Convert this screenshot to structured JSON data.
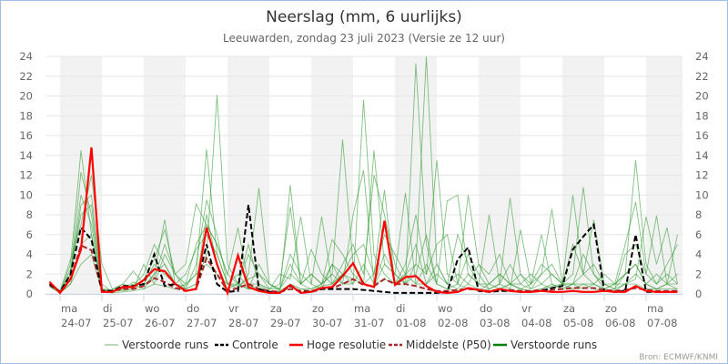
{
  "chart_data": {
    "type": "line",
    "title": "Neerslag (mm, 6 uurlijks)",
    "subtitle": "Leeuwarden, zondag 23 juli 2023 (Versie ze 12 uur)",
    "source": "Bron: ECMWF/KNMI",
    "ylim": [
      0,
      24
    ],
    "yticks": [
      0,
      2,
      4,
      6,
      8,
      10,
      12,
      14,
      16,
      18,
      20,
      22,
      24
    ],
    "grid": true,
    "legend_placement": "bottom",
    "x_ticks": [
      {
        "day": "ma",
        "date": "24-07"
      },
      {
        "day": "di",
        "date": "25-07"
      },
      {
        "day": "wo",
        "date": "26-07"
      },
      {
        "day": "do",
        "date": "27-07"
      },
      {
        "day": "vr",
        "date": "28-07"
      },
      {
        "day": "za",
        "date": "29-07"
      },
      {
        "day": "zo",
        "date": "30-07"
      },
      {
        "day": "ma",
        "date": "31-07"
      },
      {
        "day": "di",
        "date": "01-08"
      },
      {
        "day": "wo",
        "date": "02-08"
      },
      {
        "day": "do",
        "date": "03-08"
      },
      {
        "day": "vr",
        "date": "04-08"
      },
      {
        "day": "za",
        "date": "05-08"
      },
      {
        "day": "zo",
        "date": "06-08"
      },
      {
        "day": "ma",
        "date": "07-08"
      }
    ],
    "legend": [
      {
        "label": "Verstoorde runs",
        "color": "#b9dcb4",
        "style": "solid"
      },
      {
        "label": "Controle",
        "color": "#000000",
        "style": "dashed"
      },
      {
        "label": "Hoge resolutie",
        "color": "#ff0000",
        "style": "solid"
      },
      {
        "label": "Middelste (P50)",
        "color": "#a52a2a",
        "style": "dashed"
      },
      {
        "label": "Verstoorde runs",
        "color": "#008000",
        "style": "solid"
      }
    ],
    "series": {
      "hoge_resolutie": [
        1.2,
        0.1,
        1.5,
        4.5,
        14.8,
        0.2,
        0.2,
        0.7,
        0.7,
        1.4,
        2.5,
        2.3,
        1.0,
        0.3,
        0.5,
        6.7,
        3.0,
        0.1,
        3.9,
        0.7,
        0.3,
        0.1,
        0.1,
        0.9,
        0.1,
        0.2,
        0.6,
        0.7,
        1.8,
        3.1,
        1.0,
        0.7,
        7.4,
        0.9,
        1.7,
        1.8,
        0.8,
        0.2,
        0.1,
        0.2,
        0.6,
        0.4,
        0.2,
        0.5,
        0.3,
        0.2,
        0.2,
        0.3,
        0.2,
        0.2,
        0.3,
        0.2,
        0.2,
        0.3,
        0.2,
        0.2,
        0.8,
        0.3,
        0.2,
        0.2,
        0.2
      ],
      "controle": [
        1.0,
        0.2,
        2.0,
        6.7,
        5.5,
        0.3,
        0.3,
        0.8,
        0.8,
        1.0,
        4.0,
        0.8,
        1.0,
        0.3,
        0.5,
        5.0,
        1.0,
        0.2,
        0.3,
        9.0,
        0.5,
        0.2,
        0.1,
        0.8,
        0.2,
        0.2,
        0.5,
        0.5,
        0.5,
        0.5,
        0.4,
        0.3,
        0.2,
        0.1,
        0.1,
        0.1,
        0.1,
        0.1,
        0.2,
        3.5,
        4.7,
        0.3,
        0.2,
        0.3,
        0.3,
        0.2,
        0.2,
        0.3,
        0.6,
        0.8,
        4.5,
        5.8,
        7.0,
        0.3,
        0.2,
        0.3,
        6.0,
        0.2,
        0.2,
        0.2,
        0.2
      ],
      "middelste_p50": [
        0.9,
        0.2,
        1.5,
        4.9,
        4.4,
        0.3,
        0.3,
        0.5,
        0.5,
        0.8,
        1.6,
        1.2,
        0.6,
        0.3,
        0.5,
        3.6,
        2.0,
        0.3,
        0.6,
        1.0,
        0.5,
        0.3,
        0.2,
        0.5,
        0.3,
        0.3,
        0.5,
        0.6,
        1.0,
        1.5,
        0.9,
        0.8,
        1.5,
        1.0,
        1.0,
        0.8,
        0.5,
        0.3,
        0.3,
        0.4,
        0.5,
        0.4,
        0.3,
        0.4,
        0.4,
        0.3,
        0.3,
        0.4,
        0.4,
        0.5,
        0.6,
        0.6,
        0.6,
        0.4,
        0.3,
        0.4,
        0.6,
        0.4,
        0.3,
        0.3,
        0.3
      ],
      "verstoorde_runs": [
        [
          1.3,
          0.2,
          3,
          14.5,
          6,
          0.3,
          0.2,
          0.5,
          1.2,
          0.8,
          2,
          7.5,
          1,
          0.5,
          1,
          4,
          20.1,
          3,
          1,
          0.5,
          0.8,
          0.3,
          0.2,
          1,
          0.5,
          0.3,
          0.8,
          1,
          2,
          1.5,
          1,
          0.8,
          3,
          2,
          1,
          23.3,
          5,
          1,
          0.5,
          0.3,
          1,
          0.5,
          0.3,
          0.5,
          1,
          0.5,
          0.3,
          0.5,
          1,
          0.5,
          1,
          1,
          0.5,
          0.3,
          0.5,
          1,
          2,
          1,
          0.5,
          0.5,
          0.5
        ],
        [
          1.0,
          0.1,
          2,
          12.3,
          8,
          0.5,
          0.3,
          0.8,
          0.5,
          1,
          3,
          2,
          1,
          0.8,
          2,
          14.6,
          4,
          1,
          0.5,
          2,
          10.7,
          1,
          0.3,
          11,
          1,
          0.5,
          1,
          2,
          15.6,
          3,
          1,
          2,
          10.5,
          1,
          2,
          3,
          24,
          3,
          1,
          0.5,
          2,
          1,
          0.5,
          1,
          9.7,
          2,
          0.5,
          1,
          2,
          1,
          2,
          10.8,
          2,
          0.5,
          1,
          2,
          3,
          1,
          0.5,
          1,
          1
        ],
        [
          0.8,
          0.2,
          1.5,
          9,
          10,
          1,
          0.2,
          0.5,
          0.8,
          2,
          5,
          3,
          1,
          0.5,
          3,
          9.5,
          6,
          1,
          0.8,
          1.5,
          2,
          0.5,
          0.5,
          4,
          2,
          1,
          7.8,
          1,
          2,
          1,
          19.6,
          4,
          2,
          1,
          3,
          8,
          2,
          13.5,
          2,
          1,
          10,
          3,
          1,
          2,
          1,
          0.5,
          1,
          6,
          1,
          0.5,
          1,
          2,
          7.5,
          1,
          0.5,
          2,
          13.5,
          3,
          1,
          2,
          1
        ],
        [
          1.1,
          0.3,
          3.5,
          7,
          12,
          3,
          0.5,
          1,
          2.3,
          1,
          1.5,
          5,
          2,
          1,
          5,
          7,
          5,
          2,
          6.7,
          1,
          1,
          0.5,
          1,
          8.8,
          1,
          2,
          1,
          5.5,
          4,
          2,
          1,
          14.5,
          3,
          2,
          1,
          2,
          6,
          1,
          9.4,
          10,
          2,
          1,
          8,
          1,
          0.5,
          6.5,
          1,
          2,
          8.6,
          1,
          10,
          2,
          1,
          0.5,
          1,
          5,
          9.3,
          2,
          7.9,
          1,
          6
        ],
        [
          0.9,
          0.1,
          1,
          5,
          6,
          0.4,
          0.3,
          0.3,
          0.5,
          3,
          1,
          4,
          2,
          0.5,
          1,
          8,
          3,
          0.5,
          1,
          5,
          1,
          0.5,
          2,
          1.5,
          7.8,
          1,
          0.5,
          3,
          1,
          8,
          12.5,
          1,
          4,
          2,
          10.2,
          1,
          1,
          2,
          1,
          6,
          3,
          1,
          1,
          2,
          1,
          1,
          2,
          1,
          0.5,
          1,
          1,
          0.5,
          1,
          2,
          1,
          1,
          1.5,
          7.8,
          3,
          6.7,
          1
        ],
        [
          1.2,
          0.3,
          2,
          10,
          7,
          0.3,
          0.2,
          0.5,
          1,
          0.5,
          2,
          3,
          1,
          2,
          4.5,
          6,
          4,
          1,
          2,
          0.5,
          3,
          1,
          0.5,
          2,
          1,
          4.5,
          2,
          1,
          3,
          5,
          2,
          12,
          8,
          3,
          1,
          3,
          2,
          5,
          6,
          1,
          4,
          2,
          0.5,
          1,
          3,
          1,
          0.5,
          2,
          3,
          1,
          1,
          4,
          2,
          1,
          0.5,
          4,
          5,
          2,
          1,
          3,
          5
        ],
        [
          0.7,
          0.1,
          1,
          3,
          4,
          0.2,
          0.1,
          0.2,
          0.3,
          0.5,
          1,
          0.8,
          0.5,
          1,
          2,
          3,
          2,
          1,
          1,
          0.5,
          0.5,
          0.2,
          0.3,
          1,
          0.5,
          0.5,
          1,
          2,
          1,
          1,
          3,
          1,
          1.5,
          1,
          2,
          1,
          3,
          1,
          0.5,
          1,
          0.5,
          0.3,
          1,
          0.5,
          1,
          0.5,
          0.3,
          0.5,
          0.8,
          1,
          0.5,
          1,
          1,
          0.5,
          0.3,
          1,
          1,
          0.5,
          0.5,
          1,
          0.5
        ],
        [
          1.0,
          0.2,
          2.5,
          8,
          9,
          0.5,
          0.4,
          1,
          0.6,
          1.5,
          3.5,
          6.5,
          2,
          3,
          9.1,
          7,
          5,
          2,
          1,
          4,
          2,
          1,
          0.5,
          3,
          1,
          2,
          1,
          3,
          2,
          4,
          5,
          2,
          6,
          4,
          2,
          5,
          1,
          3,
          1,
          2,
          1,
          3,
          2,
          4,
          1,
          2,
          1,
          3,
          2,
          1,
          5,
          2,
          3,
          1,
          1,
          2,
          3,
          1,
          2,
          1,
          2
        ]
      ]
    },
    "colors": {
      "controle": "#000000",
      "hoge_resolutie": "#ff0000",
      "middelste_p50": "#a52a2a",
      "verstoorde_runs": "#2e9a2e",
      "weekend_band": "#f2f2f2",
      "grid": "#e6e6e6"
    }
  }
}
